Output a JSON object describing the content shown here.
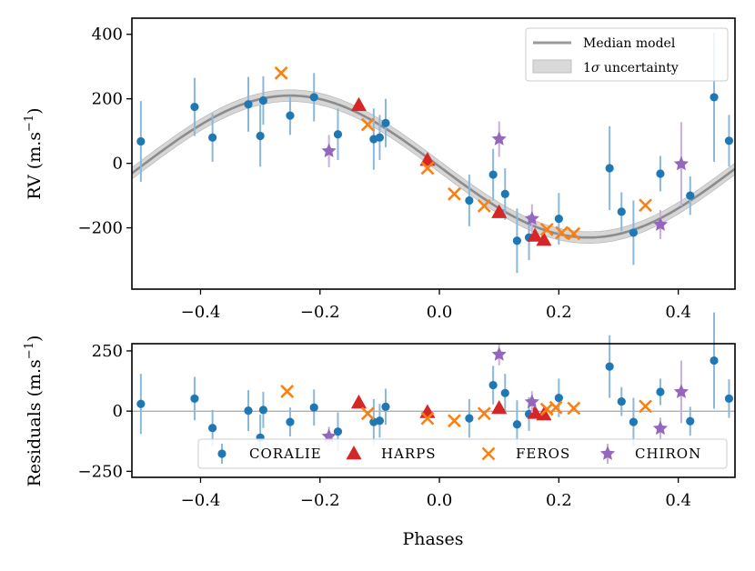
{
  "chart_data": [
    {
      "type": "scatter",
      "name": "rv-panel",
      "ylabel_main": "RV (m.s",
      "ylabel_sup": "−1",
      "ylabel_close": ")",
      "xlim": [
        -0.515,
        0.495
      ],
      "ylim": [
        -390,
        450
      ],
      "xticks": [
        -0.4,
        -0.2,
        0.0,
        0.2,
        0.4
      ],
      "xtick_labels": [
        "−0.4",
        "−0.2",
        "0.0",
        "0.2",
        "0.4"
      ],
      "yticks": [
        -200,
        0,
        200,
        400
      ],
      "ytick_labels": [
        "−200",
        "0",
        "200",
        "400"
      ],
      "model": {
        "offset": -10,
        "amplitude": 220,
        "peak_phase": -0.25,
        "band": 18
      },
      "legend": {
        "placement": "top-right",
        "median_label": "Median model",
        "band_label_pre": "1",
        "band_label_sigma": "σ",
        "band_label_post": " uncertainty"
      },
      "series": [
        {
          "name": "CORALIE",
          "marker": "circle",
          "color": "#1f77b4",
          "errcolor": "#8ab8db",
          "points": [
            {
              "x": -0.5,
              "y": 68,
              "err": 125
            },
            {
              "x": -0.41,
              "y": 175,
              "err": 90
            },
            {
              "x": -0.38,
              "y": 80,
              "err": 75
            },
            {
              "x": -0.32,
              "y": 183,
              "err": 85
            },
            {
              "x": -0.3,
              "y": 85,
              "err": 95
            },
            {
              "x": -0.295,
              "y": 195,
              "err": 75
            },
            {
              "x": -0.25,
              "y": 148,
              "err": 60
            },
            {
              "x": -0.21,
              "y": 205,
              "err": 75
            },
            {
              "x": -0.17,
              "y": 90,
              "err": 80
            },
            {
              "x": -0.11,
              "y": 75,
              "err": 95
            },
            {
              "x": -0.1,
              "y": 80,
              "err": 70
            },
            {
              "x": -0.09,
              "y": 125,
              "err": 75
            },
            {
              "x": 0.05,
              "y": -115,
              "err": 80
            },
            {
              "x": 0.09,
              "y": -35,
              "err": 80
            },
            {
              "x": 0.11,
              "y": -95,
              "err": 80
            },
            {
              "x": 0.13,
              "y": -240,
              "err": 100
            },
            {
              "x": 0.15,
              "y": -230,
              "err": 70
            },
            {
              "x": 0.2,
              "y": -172,
              "err": 80
            },
            {
              "x": 0.285,
              "y": -15,
              "err": 130
            },
            {
              "x": 0.305,
              "y": -150,
              "err": 60
            },
            {
              "x": 0.325,
              "y": -215,
              "err": 100
            },
            {
              "x": 0.37,
              "y": -32,
              "err": 55
            },
            {
              "x": 0.42,
              "y": -100,
              "err": 60
            },
            {
              "x": 0.46,
              "y": 205,
              "err": 200
            },
            {
              "x": 0.485,
              "y": 70,
              "err": 80
            }
          ]
        },
        {
          "name": "HARPS",
          "marker": "triangle",
          "color": "#d62728",
          "points": [
            {
              "x": -0.135,
              "y": 180
            },
            {
              "x": -0.02,
              "y": 10
            },
            {
              "x": 0.1,
              "y": -152
            },
            {
              "x": 0.16,
              "y": -225
            },
            {
              "x": 0.175,
              "y": -238
            }
          ]
        },
        {
          "name": "FEROS",
          "marker": "x",
          "color": "#ff7f0e",
          "points": [
            {
              "x": -0.265,
              "y": 280
            },
            {
              "x": -0.12,
              "y": 120
            },
            {
              "x": -0.02,
              "y": -15
            },
            {
              "x": 0.025,
              "y": -95
            },
            {
              "x": 0.075,
              "y": -132
            },
            {
              "x": 0.18,
              "y": -205
            },
            {
              "x": 0.205,
              "y": -215
            },
            {
              "x": 0.225,
              "y": -218
            },
            {
              "x": 0.345,
              "y": -130
            }
          ]
        },
        {
          "name": "CHIRON",
          "marker": "star",
          "color": "#9467bd",
          "errcolor": "#c9aede",
          "points": [
            {
              "x": -0.185,
              "y": 38,
              "err": 50
            },
            {
              "x": 0.1,
              "y": 75,
              "err": 55
            },
            {
              "x": 0.155,
              "y": -172,
              "err": 45
            },
            {
              "x": 0.37,
              "y": -190,
              "err": 45
            },
            {
              "x": 0.405,
              "y": -2,
              "err": 130
            }
          ]
        }
      ]
    },
    {
      "type": "scatter",
      "name": "residuals-panel",
      "xlabel": "Phases",
      "ylabel_main": "Residuals (m.s",
      "ylabel_sup": "−1",
      "ylabel_close": ")",
      "xlim": [
        -0.515,
        0.495
      ],
      "ylim": [
        -275,
        280
      ],
      "xticks": [
        -0.4,
        -0.2,
        0.0,
        0.2,
        0.4
      ],
      "xtick_labels": [
        "−0.4",
        "−0.2",
        "0.0",
        "0.2",
        "0.4"
      ],
      "yticks": [
        -250,
        0,
        250
      ],
      "ytick_labels": [
        "−250",
        "0",
        "250"
      ],
      "legend": {
        "placement": "lower-right",
        "labels": [
          "CORALIE",
          "HARPS",
          "FEROS",
          "CHIRON"
        ]
      },
      "series": [
        {
          "name": "CORALIE",
          "marker": "circle",
          "color": "#1f77b4",
          "errcolor": "#8ab8db",
          "points": [
            {
              "x": -0.5,
              "y": 30,
              "err": 125
            },
            {
              "x": -0.41,
              "y": 52,
              "err": 90
            },
            {
              "x": -0.38,
              "y": -70,
              "err": 75
            },
            {
              "x": -0.32,
              "y": 2,
              "err": 85
            },
            {
              "x": -0.3,
              "y": -110,
              "err": 95
            },
            {
              "x": -0.295,
              "y": 5,
              "err": 75
            },
            {
              "x": -0.25,
              "y": -45,
              "err": 60
            },
            {
              "x": -0.21,
              "y": 15,
              "err": 75
            },
            {
              "x": -0.17,
              "y": -85,
              "err": 80
            },
            {
              "x": -0.11,
              "y": -45,
              "err": 95
            },
            {
              "x": -0.1,
              "y": -40,
              "err": 70
            },
            {
              "x": -0.09,
              "y": 18,
              "err": 75
            },
            {
              "x": 0.05,
              "y": -30,
              "err": 80
            },
            {
              "x": 0.09,
              "y": 108,
              "err": 80
            },
            {
              "x": 0.11,
              "y": 75,
              "err": 80
            },
            {
              "x": 0.13,
              "y": -55,
              "err": 100
            },
            {
              "x": 0.15,
              "y": -12,
              "err": 70
            },
            {
              "x": 0.2,
              "y": 55,
              "err": 80
            },
            {
              "x": 0.285,
              "y": 185,
              "err": 130
            },
            {
              "x": 0.305,
              "y": 40,
              "err": 60
            },
            {
              "x": 0.325,
              "y": -45,
              "err": 100
            },
            {
              "x": 0.37,
              "y": 80,
              "err": 55
            },
            {
              "x": 0.42,
              "y": -42,
              "err": 60
            },
            {
              "x": 0.46,
              "y": 210,
              "err": 200
            },
            {
              "x": 0.485,
              "y": 52,
              "err": 80
            }
          ]
        },
        {
          "name": "HARPS",
          "marker": "triangle",
          "color": "#d62728",
          "points": [
            {
              "x": -0.135,
              "y": 35
            },
            {
              "x": -0.02,
              "y": -5
            },
            {
              "x": 0.1,
              "y": 12
            },
            {
              "x": 0.16,
              "y": -8
            },
            {
              "x": 0.175,
              "y": -15
            }
          ]
        },
        {
          "name": "FEROS",
          "marker": "x",
          "color": "#ff7f0e",
          "points": [
            {
              "x": -0.255,
              "y": 82
            },
            {
              "x": -0.12,
              "y": -10
            },
            {
              "x": -0.02,
              "y": -30
            },
            {
              "x": 0.025,
              "y": -40
            },
            {
              "x": 0.075,
              "y": -10
            },
            {
              "x": 0.18,
              "y": 8
            },
            {
              "x": 0.195,
              "y": 15
            },
            {
              "x": 0.225,
              "y": 12
            },
            {
              "x": 0.345,
              "y": 20
            }
          ]
        },
        {
          "name": "CHIRON",
          "marker": "star",
          "color": "#9467bd",
          "errcolor": "#c9aede",
          "points": [
            {
              "x": -0.185,
              "y": -105,
              "err": 40
            },
            {
              "x": 0.1,
              "y": 235,
              "err": 45
            },
            {
              "x": 0.155,
              "y": 38,
              "err": 45
            },
            {
              "x": 0.37,
              "y": -72,
              "err": 45
            },
            {
              "x": 0.405,
              "y": 80,
              "err": 130
            }
          ]
        }
      ]
    }
  ]
}
